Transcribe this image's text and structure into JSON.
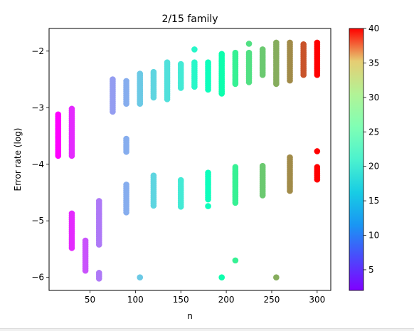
{
  "chart_data": {
    "type": "scatter",
    "title": "2/15 family",
    "xlabel": "n",
    "ylabel": "Error rate (log)",
    "xlim": [
      5,
      315
    ],
    "ylim": [
      -6.23,
      -1.6
    ],
    "x_ticks": [
      50,
      100,
      150,
      200,
      250,
      300
    ],
    "y_ticks": [
      -6,
      -5,
      -4,
      -3,
      -2
    ],
    "x_tick_labels": [
      "50",
      "100",
      "150",
      "200",
      "250",
      "300"
    ],
    "y_tick_labels": [
      "−6",
      "−5",
      "−4",
      "−3",
      "−2"
    ],
    "colorbar": {
      "colormap": "rainbow",
      "range": [
        2,
        40
      ],
      "ticks": [
        5,
        10,
        15,
        20,
        25,
        30,
        35,
        40
      ],
      "tick_labels": [
        "5",
        "10",
        "15",
        "20",
        "25",
        "30",
        "35",
        "40"
      ]
    },
    "grid": false,
    "groups": [
      {
        "x": 15,
        "c": 2,
        "bands": [
          [
            -3.85,
            -3.12
          ]
        ]
      },
      {
        "x": 30,
        "c": 4,
        "bands": [
          [
            -3.85,
            -3.02
          ],
          [
            -5.48,
            -4.87
          ]
        ]
      },
      {
        "x": 45,
        "c": 6,
        "bands": [
          [
            -5.88,
            -5.35
          ]
        ]
      },
      {
        "x": 60,
        "c": 8,
        "bands": [
          [
            -5.42,
            -4.65
          ],
          [
            -6.02,
            -5.92
          ]
        ]
      },
      {
        "x": 75,
        "c": 10,
        "bands": [
          [
            -3.07,
            -2.5
          ]
        ]
      },
      {
        "x": 90,
        "c": 11,
        "bands": [
          [
            -2.93,
            -2.53
          ],
          [
            -3.78,
            -3.55
          ],
          [
            -4.85,
            -4.36
          ]
        ]
      },
      {
        "x": 105,
        "c": 13,
        "bands": [
          [
            -2.93,
            -2.4
          ],
          [
            -6.0,
            -6.0
          ]
        ]
      },
      {
        "x": 120,
        "c": 14,
        "bands": [
          [
            -2.82,
            -2.37
          ],
          [
            -4.73,
            -4.2
          ]
        ]
      },
      {
        "x": 135,
        "c": 15,
        "bands": [
          [
            -2.85,
            -2.2
          ]
        ]
      },
      {
        "x": 150,
        "c": 16,
        "bands": [
          [
            -2.65,
            -2.23
          ],
          [
            -4.75,
            -4.28
          ]
        ]
      },
      {
        "x": 165,
        "c": 18,
        "bands": [
          [
            -2.63,
            -2.2
          ],
          [
            -1.97,
            -1.97
          ]
        ]
      },
      {
        "x": 180,
        "c": 20,
        "bands": [
          [
            -2.68,
            -2.2
          ],
          [
            -4.62,
            -4.15
          ],
          [
            -4.74,
            -4.74
          ]
        ]
      },
      {
        "x": 195,
        "c": 22,
        "bands": [
          [
            -2.75,
            -2.05
          ],
          [
            -6.0,
            -6.0
          ]
        ]
      },
      {
        "x": 210,
        "c": 25,
        "bands": [
          [
            -2.58,
            -2.03
          ],
          [
            -4.68,
            -4.05
          ],
          [
            -5.7,
            -5.7
          ]
        ]
      },
      {
        "x": 225,
        "c": 27,
        "bands": [
          [
            -2.55,
            -2.03
          ],
          [
            -1.87,
            -1.87
          ]
        ]
      },
      {
        "x": 240,
        "c": 29,
        "bands": [
          [
            -2.42,
            -1.97
          ],
          [
            -4.55,
            -4.03
          ]
        ]
      },
      {
        "x": 255,
        "c": 31,
        "bands": [
          [
            -2.58,
            -1.85
          ],
          [
            -6.0,
            -6.0
          ]
        ]
      },
      {
        "x": 270,
        "c": 33,
        "bands": [
          [
            -2.52,
            -1.85
          ],
          [
            -4.47,
            -3.88
          ]
        ]
      },
      {
        "x": 285,
        "c": 36,
        "bands": [
          [
            -2.42,
            -1.88
          ]
        ]
      },
      {
        "x": 300,
        "c": 40,
        "bands": [
          [
            -2.42,
            -1.85
          ],
          [
            -4.27,
            -4.05
          ],
          [
            -3.77,
            -3.77
          ]
        ]
      }
    ]
  }
}
